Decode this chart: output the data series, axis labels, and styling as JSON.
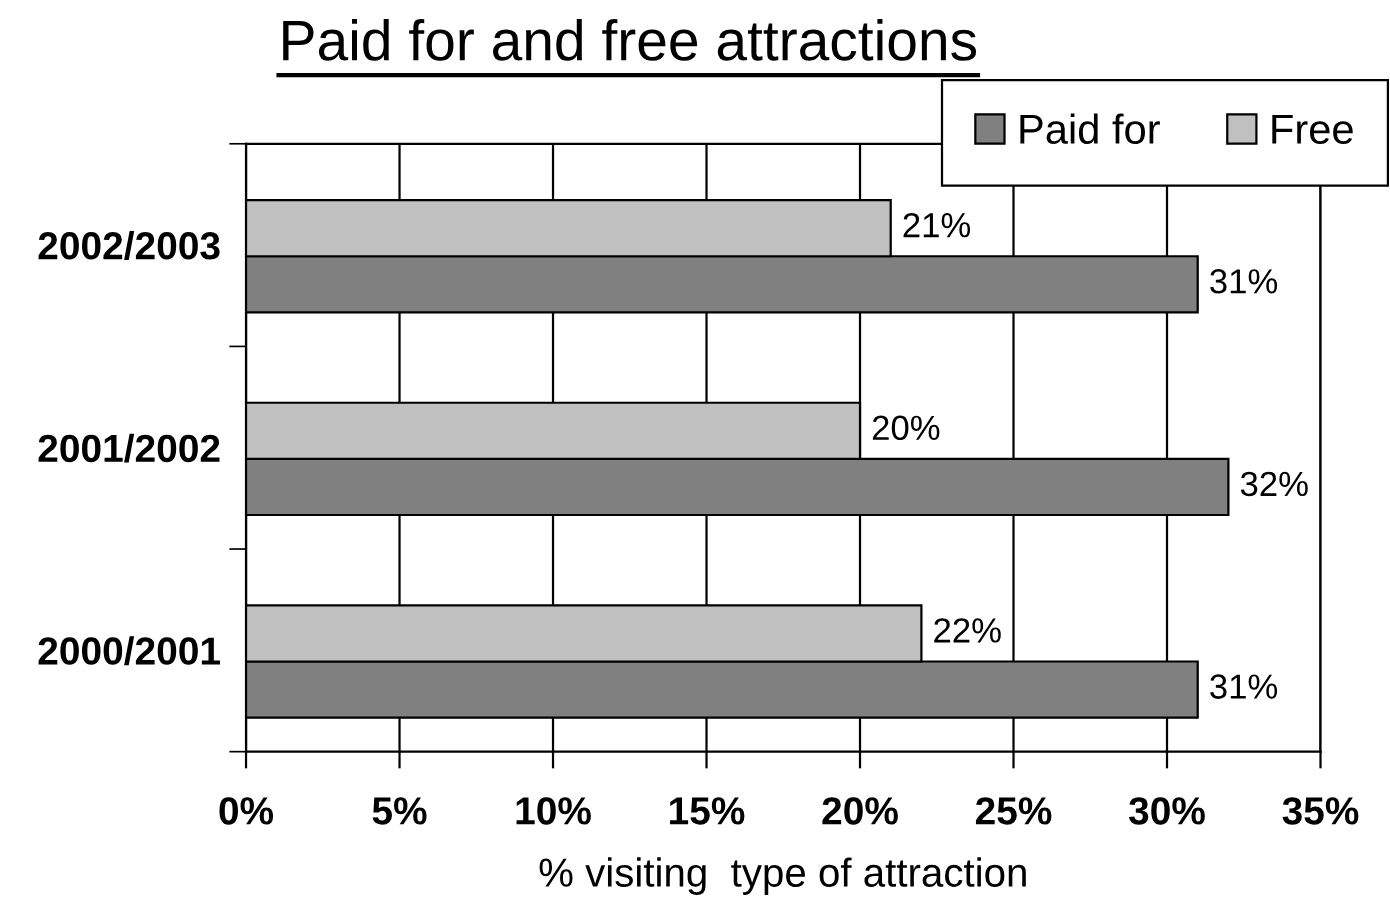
{
  "chart_data": {
    "type": "bar",
    "orientation": "horizontal",
    "title": "Paid for and free attractions",
    "xlabel": "% visiting  type of attraction",
    "categories": [
      "2002/2003",
      "2001/2002",
      "2000/2001"
    ],
    "series": [
      {
        "name": "Paid for",
        "color": "#808080",
        "values": [
          31,
          32,
          31
        ],
        "value_labels": [
          "31%",
          "32%",
          "31%"
        ]
      },
      {
        "name": "Free",
        "color": "#c0c0c0",
        "values": [
          21,
          20,
          22
        ],
        "value_labels": [
          "21%",
          "20%",
          "22%"
        ]
      }
    ],
    "xlim": [
      0,
      35
    ],
    "xticks": [
      {
        "value": 0,
        "label": "0%"
      },
      {
        "value": 5,
        "label": "5%"
      },
      {
        "value": 10,
        "label": "10%"
      },
      {
        "value": 15,
        "label": "15%"
      },
      {
        "value": 20,
        "label": "20%"
      },
      {
        "value": 25,
        "label": "25%"
      },
      {
        "value": 30,
        "label": "30%"
      },
      {
        "value": 35,
        "label": "35%"
      }
    ],
    "grid": "x",
    "legend": "top right"
  }
}
